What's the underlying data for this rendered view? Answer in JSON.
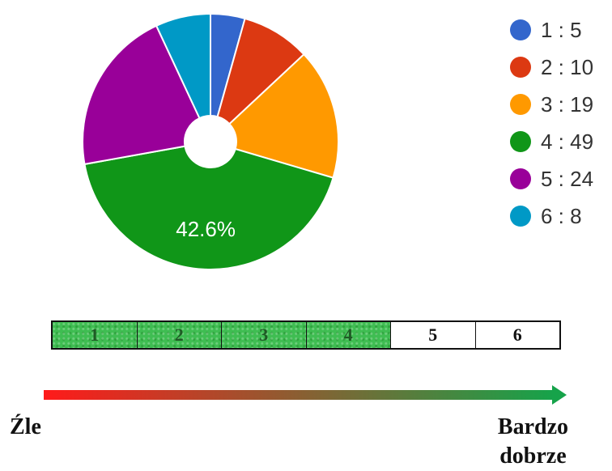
{
  "chart_data": {
    "type": "pie",
    "donut": true,
    "categories": [
      "1",
      "2",
      "3",
      "4",
      "5",
      "6"
    ],
    "values": [
      5,
      10,
      19,
      49,
      24,
      8
    ],
    "colors": [
      "#3366cc",
      "#dc3912",
      "#ff9900",
      "#109618",
      "#990099",
      "#0099c6"
    ],
    "legend": [
      "1 : 5",
      "2 : 10",
      "3 : 19",
      "4 : 49",
      "5 : 24",
      "6 : 8"
    ],
    "legend_position": "right",
    "slice_labels": [
      {
        "index": 3,
        "text": "42.6%"
      }
    ]
  },
  "scale": {
    "cells": [
      {
        "label": "1",
        "filled": true
      },
      {
        "label": "2",
        "filled": true
      },
      {
        "label": "3",
        "filled": true
      },
      {
        "label": "4",
        "filled": true
      },
      {
        "label": "5",
        "filled": false
      },
      {
        "label": "6",
        "filled": false
      }
    ],
    "fill_color": "#3fbd52"
  },
  "arrow": {
    "gradient_start": "#ff1a1a",
    "gradient_end": "#16a34a",
    "left_label": "Źle",
    "right_label_line1": "Bardzo",
    "right_label_line2": "dobrze"
  }
}
